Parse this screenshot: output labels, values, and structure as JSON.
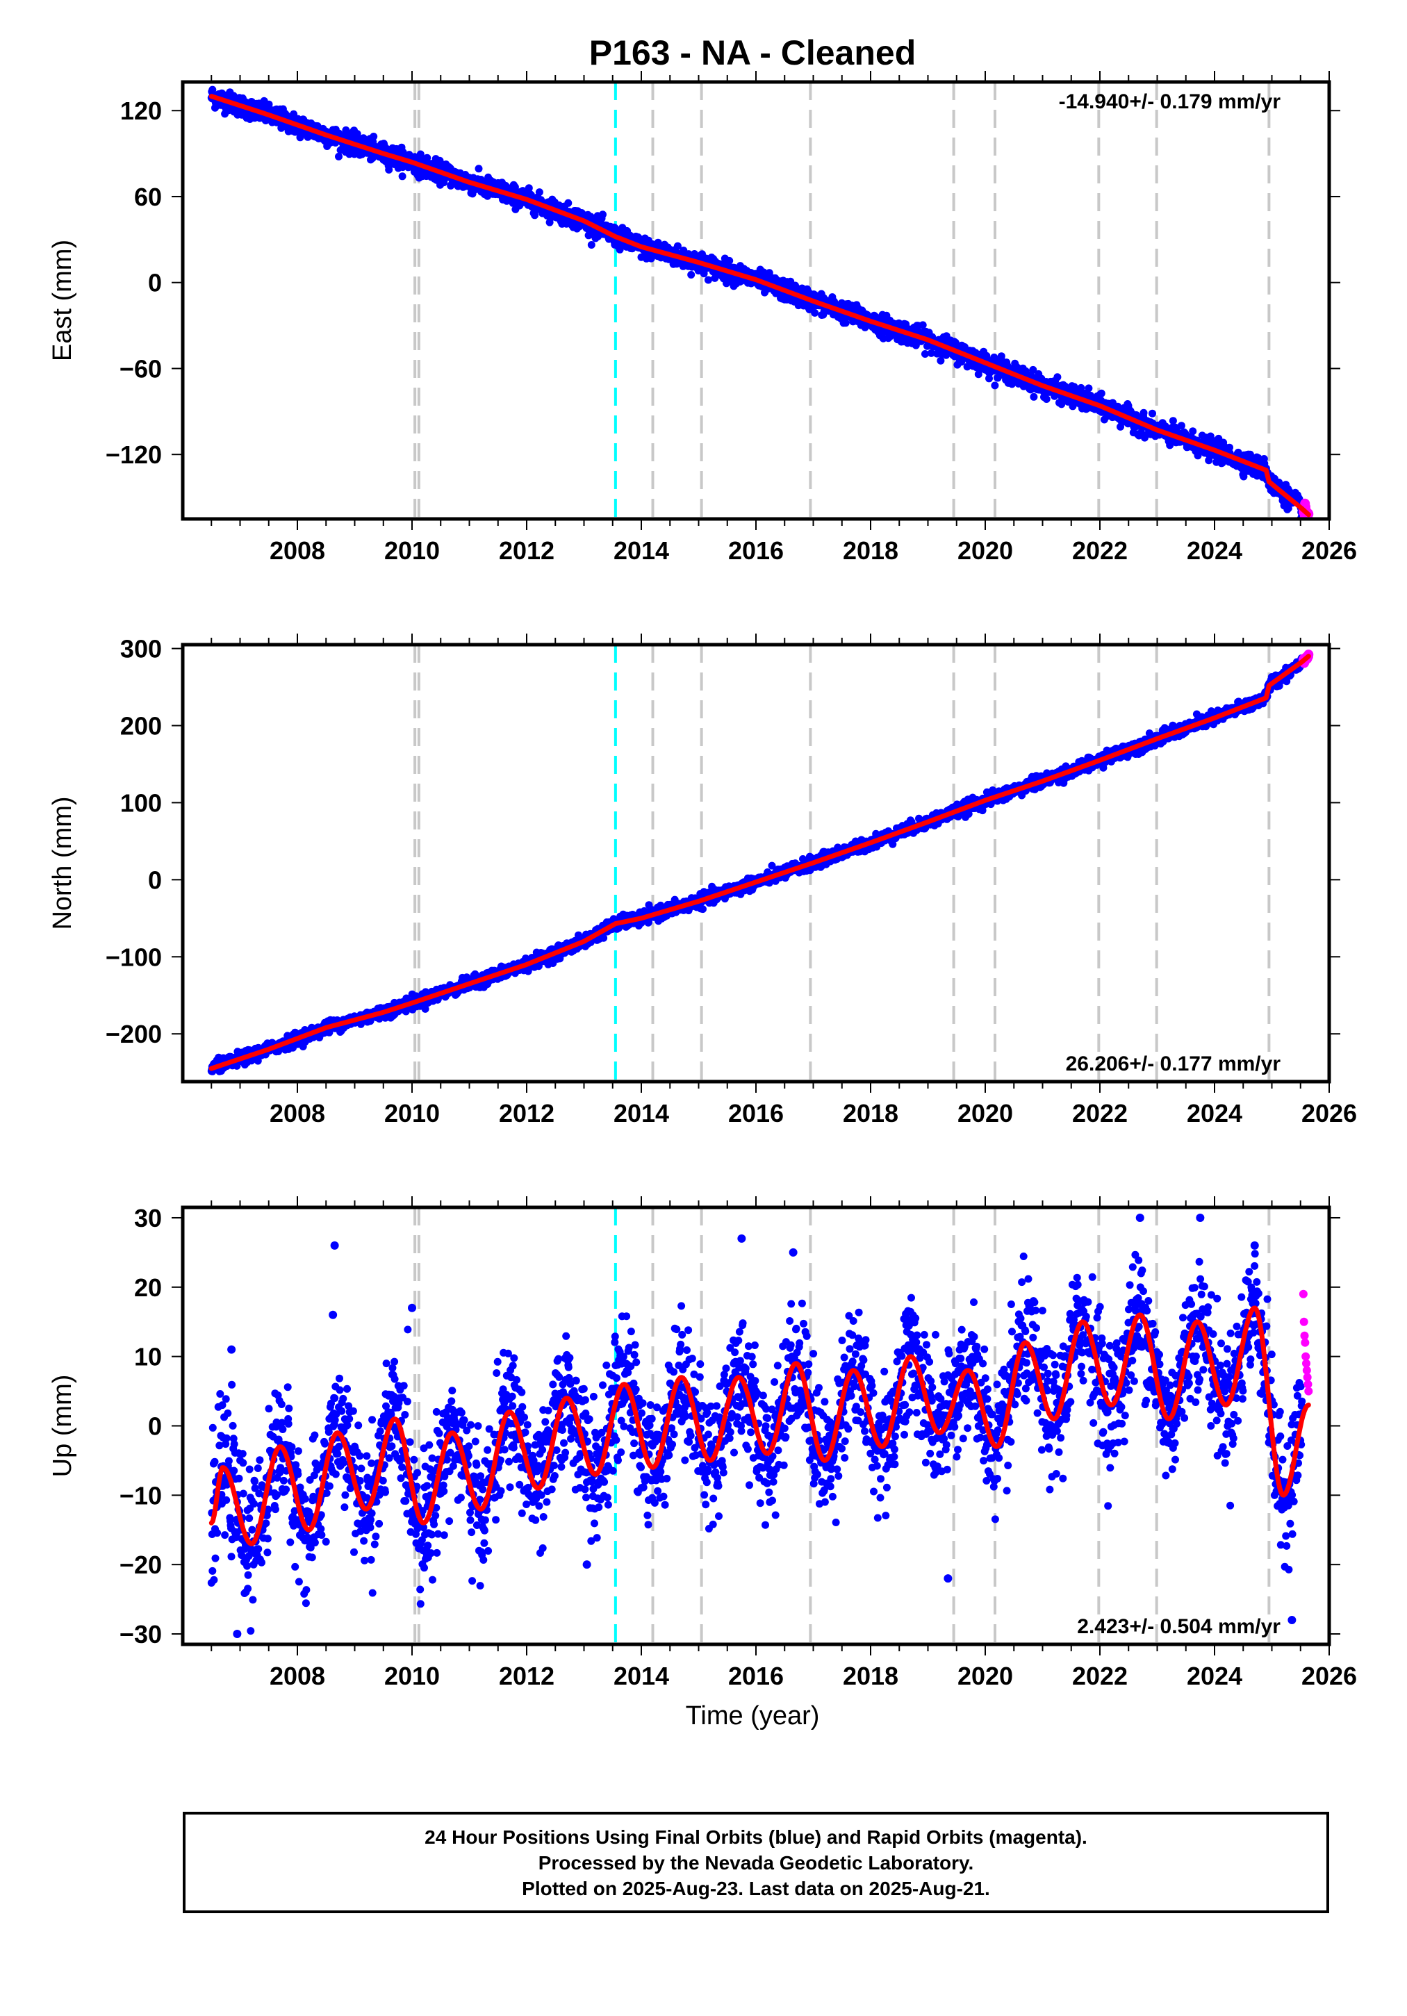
{
  "figure": {
    "title": "P163  - NA - Cleaned",
    "xlabel": "Time (year)"
  },
  "footer": {
    "lines": [
      "24 Hour Positions Using Final Orbits (blue) and Rapid Orbits (magenta).",
      "Processed by the Nevada Geodetic Laboratory.",
      "Plotted on 2025-Aug-23. Last data on 2025-Aug-21."
    ]
  },
  "colors": {
    "final_orbits": "#0000ff",
    "rapid_orbits": "#ff00ff",
    "model": "#ff0000",
    "event_line": "#c8c8c8",
    "highlight_line": "#00ffff"
  },
  "chart_data": [
    {
      "type": "scatter",
      "component": "east",
      "ylabel": "East (mm)",
      "rate_label": "-14.940+/- 0.179 mm/yr",
      "rate_position": "top-right",
      "xlim": [
        2006.0,
        2026.0
      ],
      "ylim": [
        -165,
        140
      ],
      "xticks": [
        2008,
        2010,
        2012,
        2014,
        2016,
        2018,
        2020,
        2022,
        2024,
        2026
      ],
      "yticks": [
        120,
        60,
        0,
        -60,
        -120
      ],
      "ytick_labels": [
        "120",
        "60",
        "0",
        "−60",
        "−120"
      ],
      "grid": false,
      "event_lines": [
        2010.05,
        2010.12,
        2014.2,
        2015.05,
        2016.95,
        2019.45,
        2020.17,
        2021.98,
        2022.99,
        2024.95
      ],
      "highlight_line": 2013.55,
      "series": [
        {
          "role": "final_orbits",
          "x_range": [
            2006.5,
            2025.53
          ],
          "trend_points": [
            [
              2006.5,
              130
            ],
            [
              2007.5,
              117
            ],
            [
              2008.5,
              103
            ],
            [
              2009.5,
              90
            ],
            [
              2010.0,
              84
            ],
            [
              2011.0,
              70
            ],
            [
              2012.0,
              58
            ],
            [
              2013.0,
              43
            ],
            [
              2013.55,
              32
            ],
            [
              2014.0,
              25
            ],
            [
              2015.0,
              14
            ],
            [
              2016.0,
              2
            ],
            [
              2017.0,
              -13
            ],
            [
              2018.0,
              -27
            ],
            [
              2019.0,
              -40
            ],
            [
              2020.0,
              -56
            ],
            [
              2021.0,
              -72
            ],
            [
              2022.0,
              -86
            ],
            [
              2023.0,
              -103
            ],
            [
              2024.0,
              -117
            ],
            [
              2024.9,
              -131
            ],
            [
              2024.95,
              -139
            ],
            [
              2025.53,
              -158
            ]
          ],
          "scatter_mm": 3.5
        },
        {
          "role": "rapid_orbits",
          "x_range": [
            2025.55,
            2025.64
          ],
          "trend_points": [
            [
              2025.55,
              -159
            ],
            [
              2025.64,
              -162
            ]
          ],
          "scatter_mm": 2
        }
      ]
    },
    {
      "type": "scatter",
      "component": "north",
      "ylabel": "North (mm)",
      "rate_label": "26.206+/- 0.177 mm/yr",
      "rate_position": "bottom-right",
      "xlim": [
        2006.0,
        2026.0
      ],
      "ylim": [
        -262,
        305
      ],
      "xticks": [
        2008,
        2010,
        2012,
        2014,
        2016,
        2018,
        2020,
        2022,
        2024,
        2026
      ],
      "yticks": [
        300,
        200,
        100,
        0,
        -100,
        -200
      ],
      "ytick_labels": [
        "300",
        "200",
        "100",
        "0",
        "−100",
        "−200"
      ],
      "grid": false,
      "event_lines": [
        2010.05,
        2010.12,
        2014.2,
        2015.05,
        2016.95,
        2019.45,
        2020.17,
        2021.98,
        2022.99,
        2024.95
      ],
      "highlight_line": 2013.55,
      "series": [
        {
          "role": "final_orbits",
          "x_range": [
            2006.5,
            2025.53
          ],
          "trend_points": [
            [
              2006.5,
              -245
            ],
            [
              2007.5,
              -220
            ],
            [
              2008.5,
              -192
            ],
            [
              2009.5,
              -172
            ],
            [
              2010.0,
              -160
            ],
            [
              2011.0,
              -135
            ],
            [
              2012.0,
              -110
            ],
            [
              2013.0,
              -80
            ],
            [
              2013.55,
              -57
            ],
            [
              2014.0,
              -50
            ],
            [
              2015.0,
              -28
            ],
            [
              2016.0,
              -3
            ],
            [
              2017.0,
              22
            ],
            [
              2018.0,
              48
            ],
            [
              2019.0,
              75
            ],
            [
              2020.0,
              103
            ],
            [
              2021.0,
              128
            ],
            [
              2022.0,
              155
            ],
            [
              2023.0,
              183
            ],
            [
              2024.0,
              210
            ],
            [
              2024.9,
              236
            ],
            [
              2024.95,
              252
            ],
            [
              2025.53,
              283
            ]
          ],
          "scatter_mm": 4
        },
        {
          "role": "rapid_orbits",
          "x_range": [
            2025.55,
            2025.64
          ],
          "trend_points": [
            [
              2025.55,
              285
            ],
            [
              2025.64,
              290
            ]
          ],
          "scatter_mm": 2
        }
      ]
    },
    {
      "type": "scatter",
      "component": "up",
      "ylabel": "Up (mm)",
      "rate_label": "2.423+/- 0.504 mm/yr",
      "rate_position": "bottom-right",
      "xlim": [
        2006.0,
        2026.0
      ],
      "ylim": [
        -31.5,
        31.5
      ],
      "xticks": [
        2008,
        2010,
        2012,
        2014,
        2016,
        2018,
        2020,
        2022,
        2024,
        2026
      ],
      "yticks": [
        30,
        20,
        10,
        0,
        -10,
        -20,
        -30
      ],
      "ytick_labels": [
        "30",
        "20",
        "10",
        "0",
        "−10",
        "−20",
        "−30"
      ],
      "grid": false,
      "event_lines": [
        2010.05,
        2010.12,
        2014.2,
        2015.05,
        2016.95,
        2019.45,
        2020.17,
        2021.98,
        2022.99,
        2024.95
      ],
      "highlight_line": 2013.55,
      "model": {
        "description": "linear trend plus annual sinusoid with step near 2024.95",
        "seasonal_peaks": [
          [
            2006.7,
            -6
          ],
          [
            2007.7,
            -3
          ],
          [
            2008.7,
            -1
          ],
          [
            2009.7,
            1
          ],
          [
            2010.7,
            -1
          ],
          [
            2011.7,
            2
          ],
          [
            2012.7,
            4
          ],
          [
            2013.7,
            6
          ],
          [
            2014.7,
            7
          ],
          [
            2015.7,
            7
          ],
          [
            2016.7,
            9
          ],
          [
            2017.7,
            8
          ],
          [
            2018.7,
            10
          ],
          [
            2019.7,
            8
          ],
          [
            2020.7,
            12
          ],
          [
            2021.7,
            15
          ],
          [
            2022.7,
            16
          ],
          [
            2023.7,
            15
          ],
          [
            2024.7,
            17
          ]
        ],
        "seasonal_troughs": [
          [
            2006.5,
            -14
          ],
          [
            2007.2,
            -17
          ],
          [
            2008.2,
            -15
          ],
          [
            2009.2,
            -12
          ],
          [
            2010.2,
            -14
          ],
          [
            2011.2,
            -12
          ],
          [
            2012.2,
            -9
          ],
          [
            2013.2,
            -7
          ],
          [
            2014.2,
            -6
          ],
          [
            2015.2,
            -5
          ],
          [
            2016.2,
            -4
          ],
          [
            2017.2,
            -5
          ],
          [
            2018.2,
            -3
          ],
          [
            2019.2,
            -1
          ],
          [
            2020.2,
            -3
          ],
          [
            2021.2,
            1
          ],
          [
            2022.2,
            3
          ],
          [
            2023.2,
            1
          ],
          [
            2024.2,
            3
          ],
          [
            2025.2,
            -10
          ]
        ],
        "end_point": [
          2025.64,
          3
        ]
      },
      "series": [
        {
          "role": "final_orbits",
          "x_range": [
            2006.5,
            2025.53
          ],
          "scatter_mm": 4.5
        },
        {
          "role": "rapid_orbits",
          "x_range": [
            2025.55,
            2025.64
          ],
          "values_mm": [
            19,
            15,
            13,
            12,
            10,
            9,
            8,
            7,
            6,
            5
          ]
        }
      ],
      "outliers": [
        [
          2006.85,
          11
        ],
        [
          2006.95,
          -30
        ],
        [
          2008.65,
          26
        ],
        [
          2008.62,
          16
        ],
        [
          2010.0,
          17
        ],
        [
          2013.05,
          -20
        ],
        [
          2019.35,
          -22
        ],
        [
          2022.7,
          30
        ],
        [
          2023.75,
          30
        ],
        [
          2024.7,
          26
        ],
        [
          2025.35,
          -28
        ],
        [
          2015.75,
          27
        ],
        [
          2016.65,
          25
        ]
      ]
    }
  ]
}
